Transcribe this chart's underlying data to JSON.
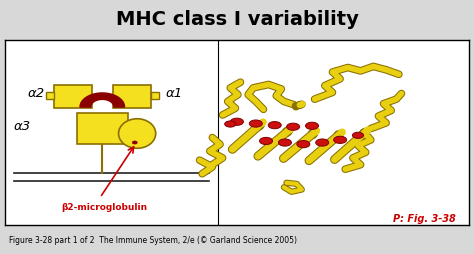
{
  "title": "MHC class I variability",
  "title_bg_color": "#6dcff6",
  "title_fontsize": 14,
  "title_fontweight": "bold",
  "outer_bg_color": "#d8d8d8",
  "panel_bg_color": "#ffffff",
  "caption": "Figure 3-28 part 1 of 2  The Immune System, 2/e (© Garland Science 2005)",
  "caption_fontsize": 5.5,
  "fig_ref": "P: Fig. 3-38",
  "fig_ref_color": "#cc0000",
  "fig_ref_fontsize": 7,
  "label_alpha2": "α2",
  "label_alpha1": "α1",
  "label_alpha3": "α3",
  "label_beta2": "β2-microglobulin",
  "label_beta2_color": "#cc0000",
  "yellow_fill": "#f5e020",
  "yellow_edge": "#8a7000",
  "red_dark": "#8b0000",
  "red_fill": "#cc1010",
  "red_circle": "#cc0000",
  "membrane_color": "#222222",
  "arrow_color": "#cc0000",
  "strand_color": "#b8a000",
  "strand_fill": "#e8d010"
}
